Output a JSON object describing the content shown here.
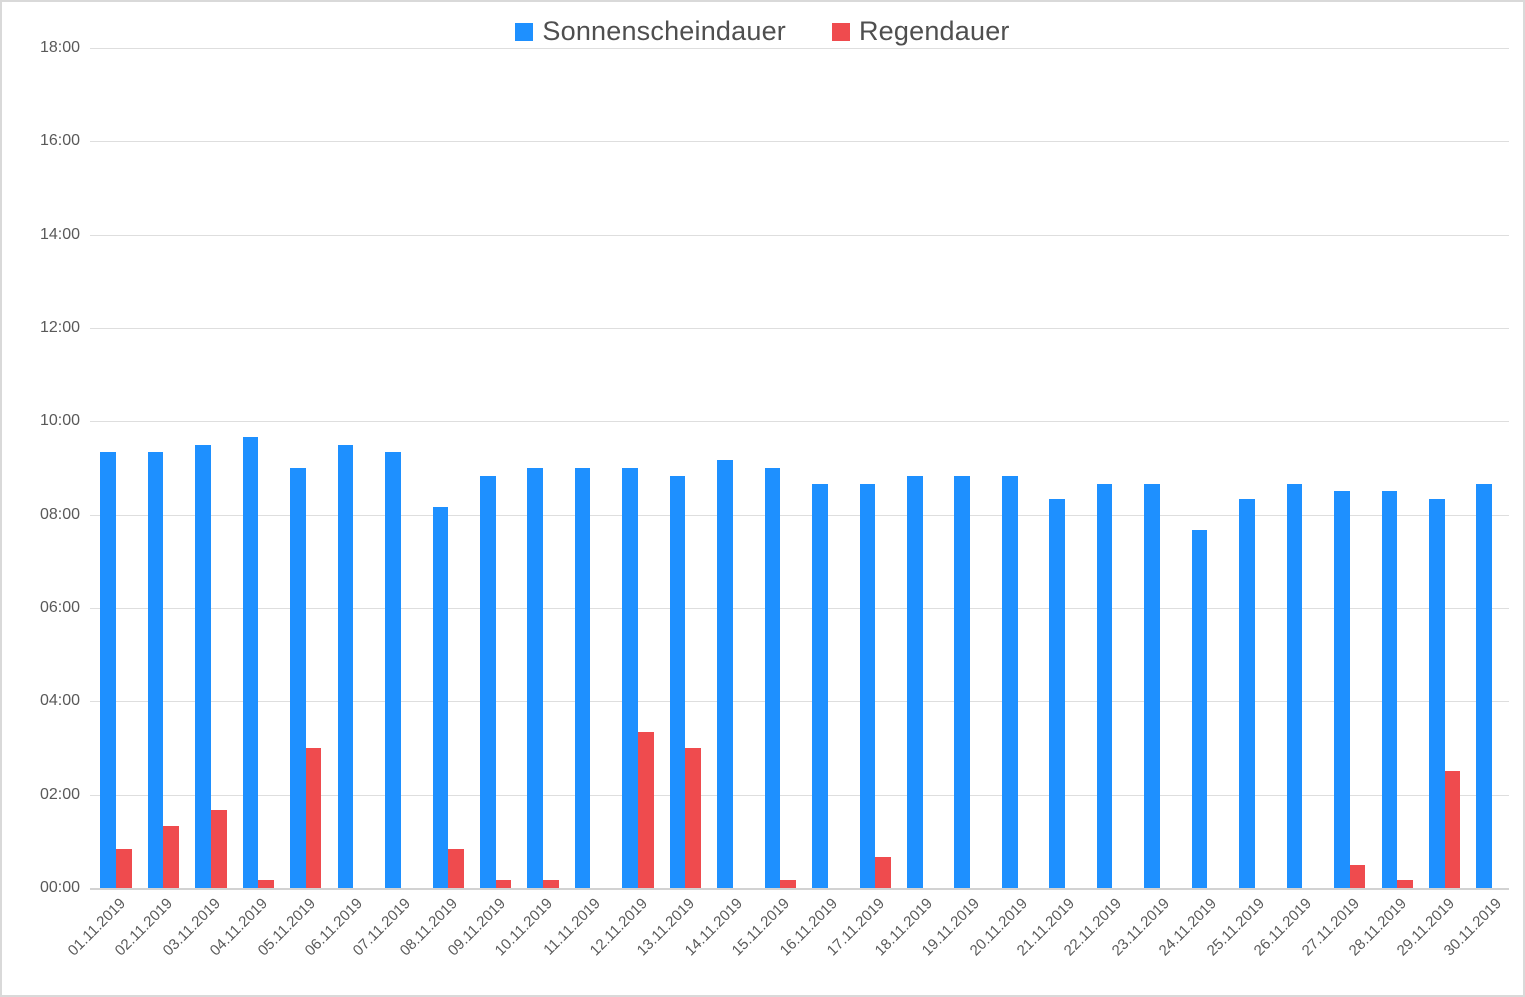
{
  "chart_data": {
    "type": "bar",
    "title": "",
    "legend_position": "top-center",
    "grid": true,
    "categories": [
      "01.11.2019",
      "02.11.2019",
      "03.11.2019",
      "04.11.2019",
      "05.11.2019",
      "06.11.2019",
      "07.11.2019",
      "08.11.2019",
      "09.11.2019",
      "10.11.2019",
      "11.11.2019",
      "12.11.2019",
      "13.11.2019",
      "14.11.2019",
      "15.11.2019",
      "16.11.2019",
      "17.11.2019",
      "18.11.2019",
      "19.11.2019",
      "20.11.2019",
      "21.11.2019",
      "22.11.2019",
      "23.11.2019",
      "24.11.2019",
      "25.11.2019",
      "26.11.2019",
      "27.11.2019",
      "28.11.2019",
      "29.11.2019",
      "30.11.2019"
    ],
    "series": [
      {
        "name": "Sonnenscheindauer",
        "color": "#1E90FF",
        "values": [
          "09:20",
          "09:20",
          "09:30",
          "09:40",
          "09:00",
          "09:30",
          "09:20",
          "08:10",
          "08:50",
          "09:00",
          "09:00",
          "09:00",
          "08:50",
          "09:10",
          "09:00",
          "08:40",
          "08:40",
          "08:50",
          "08:50",
          "08:50",
          "08:20",
          "08:40",
          "08:40",
          "07:40",
          "08:20",
          "08:40",
          "08:30",
          "08:30",
          "08:20",
          "08:40"
        ]
      },
      {
        "name": "Regendauer",
        "color": "#EF4B4E",
        "values": [
          "00:50",
          "01:20",
          "01:40",
          "00:10",
          "03:00",
          "00:00",
          "00:00",
          "00:50",
          "00:10",
          "00:10",
          "00:00",
          "03:20",
          "03:00",
          "00:00",
          "00:10",
          "00:00",
          "00:40",
          "00:00",
          "00:00",
          "00:00",
          "00:00",
          "00:00",
          "00:00",
          "00:00",
          "00:00",
          "00:00",
          "00:30",
          "00:10",
          "02:30",
          "00:00"
        ]
      }
    ],
    "y_axis": {
      "tick_labels": [
        "00:00",
        "02:00",
        "04:00",
        "06:00",
        "08:00",
        "10:00",
        "12:00",
        "14:00",
        "16:00",
        "18:00"
      ],
      "min": "00:00",
      "max": "18:00",
      "tick_step": "02:00",
      "unit": "duration hh:mm"
    },
    "colors": {
      "gridline": "#DEDEDE",
      "axis_line": "#D2D2D2",
      "axis_text": "#595959",
      "legend_text": "#4F4F4F"
    }
  }
}
